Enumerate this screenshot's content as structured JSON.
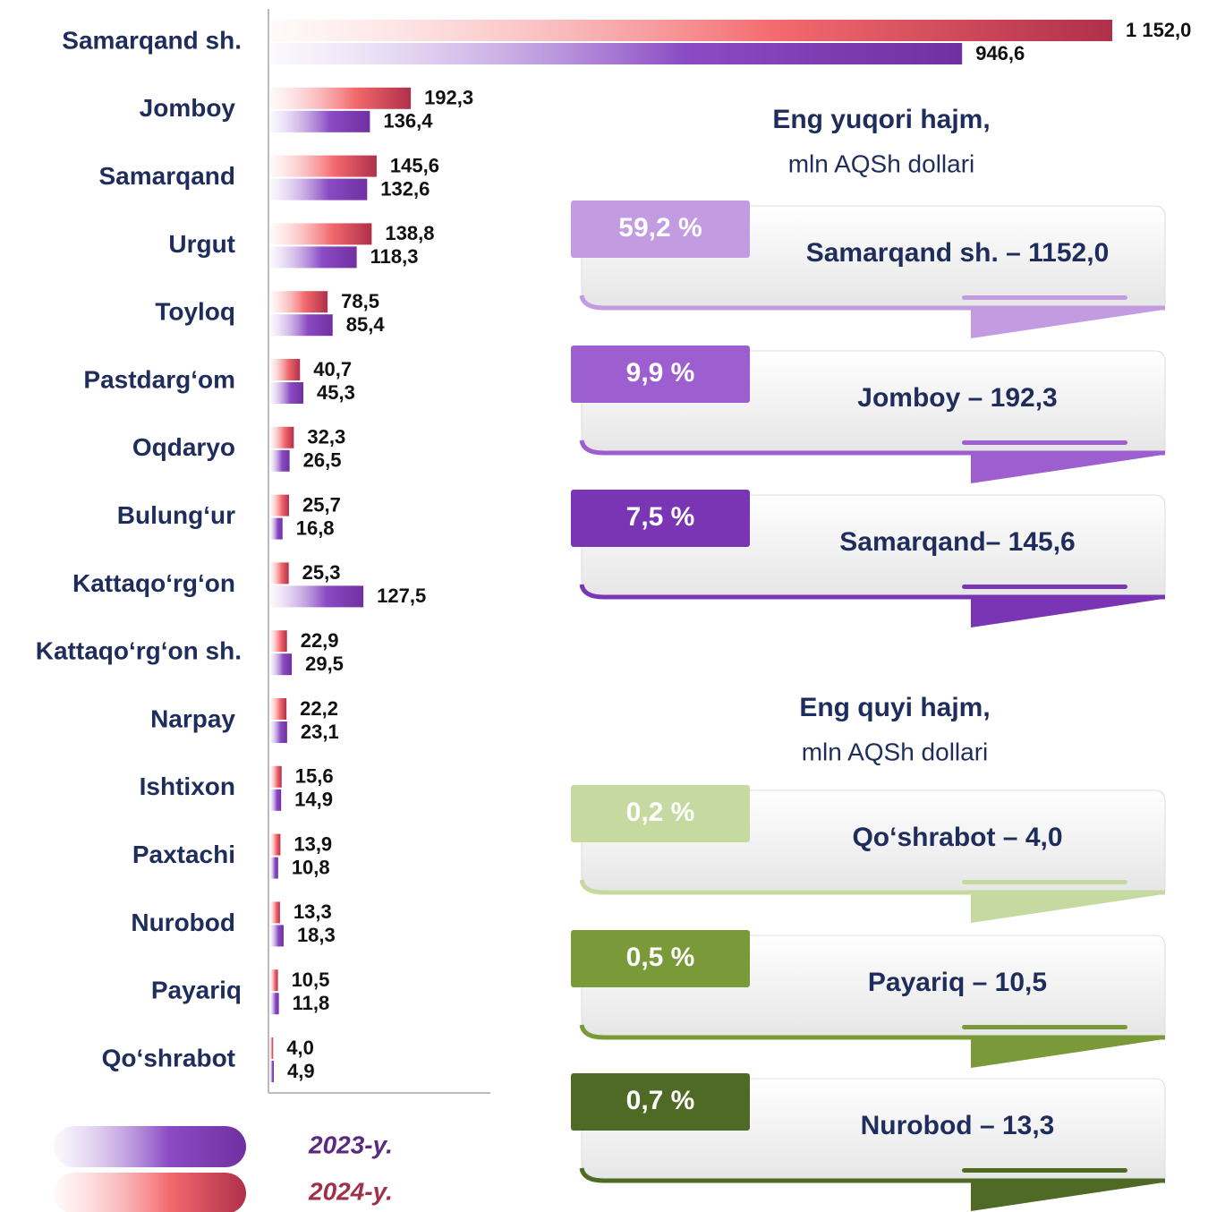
{
  "chart_data": {
    "type": "bar",
    "orientation": "horizontal",
    "categories": [
      "Samarqand sh.",
      "Jomboy",
      "Samarqand",
      "Urgut",
      "Toyloq",
      "Pastdarg‘om",
      "Oqdaryo",
      "Bulung‘ur",
      "Kattaqo‘rg‘on",
      "Kattaqo‘rg‘on sh.",
      "Narpay",
      "Ishtixon",
      "Paxtachi",
      "Nurobod",
      "Payariq",
      "Qo‘shrabot"
    ],
    "series": [
      {
        "name": "2024-y.",
        "color": "#b0304a",
        "values": [
          1152.0,
          192.3,
          145.6,
          138.8,
          78.5,
          40.7,
          32.3,
          25.7,
          25.3,
          22.9,
          22.2,
          15.6,
          13.9,
          13.3,
          10.5,
          4.0
        ],
        "value_labels": [
          "1 152,0",
          "192,3",
          "145,6",
          "138,8",
          "78,5",
          "40,7",
          "32,3",
          "25,7",
          "25,3",
          "22,9",
          "22,2",
          "15,6",
          "13,9",
          "13,3",
          "10,5",
          "4,0"
        ]
      },
      {
        "name": "2023-y.",
        "color": "#7030a0",
        "values": [
          946.6,
          136.4,
          132.6,
          118.3,
          85.4,
          45.3,
          26.5,
          16.8,
          127.5,
          29.5,
          23.1,
          14.9,
          10.8,
          18.3,
          11.8,
          4.9
        ],
        "value_labels": [
          "946,6",
          "136,4",
          "132,6",
          "118,3",
          "85,4",
          "45,3",
          "26,5",
          "16,8",
          "127,5",
          "29,5",
          "23,1",
          "14,9",
          "10,8",
          "18,3",
          "11,8",
          "4,9"
        ]
      }
    ],
    "xlim": [
      0,
      1283
    ]
  },
  "panels": [
    {
      "title": "Eng yuqori hajm,",
      "subtitle": "mln AQSh dollari",
      "items": [
        {
          "share": "59,2 %",
          "text": "Samarqand sh. – 1152,0",
          "color": "#c39be0"
        },
        {
          "share": "9,9 %",
          "text": "Jomboy – 192,3",
          "color": "#9d5fd0"
        },
        {
          "share": "7,5 %",
          "text": "Samarqand– 145,6",
          "color": "#7a35b5"
        }
      ]
    },
    {
      "title": "Eng quyi hajm,",
      "subtitle": "mln AQSh dollari",
      "items": [
        {
          "share": "0,2 %",
          "text": "Qo‘shrabot – 4,0",
          "color": "#c5d9a0"
        },
        {
          "share": "0,5 %",
          "text": "Payariq – 10,5",
          "color": "#7a9a3a"
        },
        {
          "share": "0,7 %",
          "text": "Nurobod – 13,3",
          "color": "#4f6a25"
        }
      ]
    }
  ]
}
